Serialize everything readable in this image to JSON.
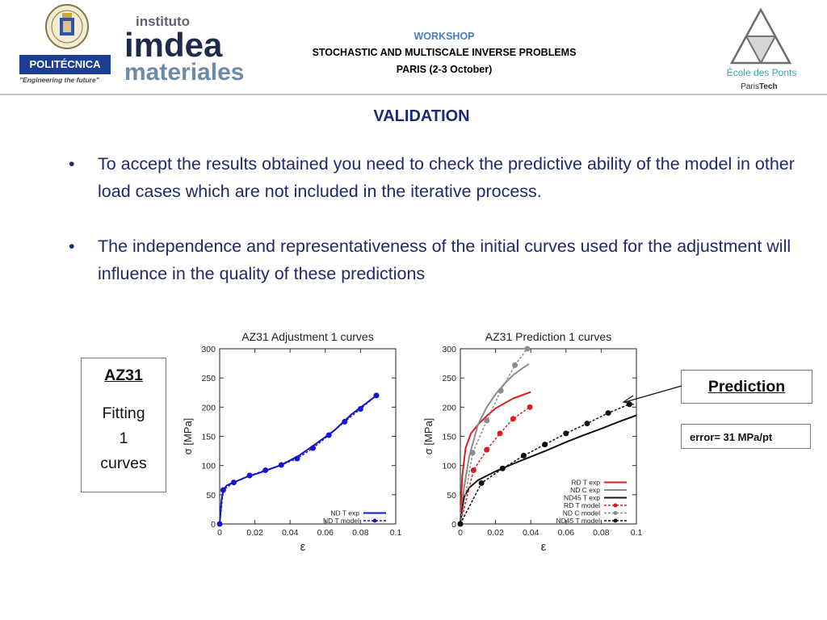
{
  "header": {
    "upm": {
      "banner": "POLITÉCNICA",
      "tagline": "\"Engineering the future\""
    },
    "imdea": {
      "line1": "instituto",
      "line2": "imdea",
      "line3": "materiales"
    },
    "workshop": {
      "label": "WORKSHOP",
      "name": "STOCHASTIC AND MULTISCALE INVERSE PROBLEMS",
      "location": "PARIS (2-3 October)"
    },
    "enpc": {
      "name": "École des Ponts",
      "sub1": "Paris",
      "sub2": "Tech"
    }
  },
  "slide": {
    "title": "VALIDATION",
    "bullets": [
      "To accept the results obtained you need to check the predictive ability of the model in other load cases which are not included in the iterative process.",
      "The independence and representativeness of the initial curves used for the adjustment will influence in the quality of these predictions"
    ],
    "bullet_symbol": "•"
  },
  "az_box": {
    "title": "AZ31",
    "line2": "Fitting",
    "line3": "1",
    "line4": "curves"
  },
  "prediction_box": {
    "label": "Prediction"
  },
  "error_box": {
    "label": "error= 31 MPa/pt"
  },
  "colors": {
    "blue": "#1515d0",
    "red": "#d62020",
    "grey": "#8c8c8c",
    "black": "#111111",
    "title_blue": "#1a2a70"
  },
  "chart_data": [
    {
      "type": "line",
      "title": "AZ31 Adjustment 1 curves",
      "xlabel": "ε",
      "ylabel": "σ [MPa]",
      "xlim": [
        0,
        0.1
      ],
      "ylim": [
        0,
        300
      ],
      "xticks": [
        "0",
        "0.02",
        "0.04",
        "0.06",
        "0.08",
        "0.1"
      ],
      "yticks": [
        "0",
        "50",
        "100",
        "150",
        "200",
        "250",
        "300"
      ],
      "legend_position": "bottom-right",
      "series": [
        {
          "name": "ND T exp",
          "style": "solid",
          "color": "#1515d0",
          "x": [
            0,
            0.001,
            0.002,
            0.004,
            0.008,
            0.015,
            0.025,
            0.035,
            0.045,
            0.055,
            0.065,
            0.075,
            0.089
          ],
          "y": [
            0,
            40,
            58,
            66,
            71,
            80,
            90,
            101,
            117,
            138,
            160,
            188,
            220
          ]
        },
        {
          "name": "ND T model",
          "style": "dashed-markers",
          "color": "#1515d0",
          "x": [
            0,
            0.002,
            0.008,
            0.017,
            0.026,
            0.035,
            0.044,
            0.053,
            0.062,
            0.071,
            0.08,
            0.089
          ],
          "y": [
            0,
            58,
            71,
            83,
            92,
            101,
            112,
            130,
            152,
            175,
            197,
            220
          ]
        }
      ]
    },
    {
      "type": "line",
      "title": "AZ31 Prediction 1 curves",
      "xlabel": "ε",
      "ylabel": "σ [MPa]",
      "xlim": [
        0,
        0.1
      ],
      "ylim": [
        0,
        300
      ],
      "xticks": [
        "0",
        "0.02",
        "0.04",
        "0.06",
        "0.08",
        "0.1"
      ],
      "yticks": [
        "0",
        "50",
        "100",
        "150",
        "200",
        "250",
        "300"
      ],
      "legend_position": "bottom-right",
      "series": [
        {
          "name": "RD T exp",
          "style": "solid",
          "color": "#d62020",
          "x": [
            0,
            0.001,
            0.003,
            0.006,
            0.01,
            0.015,
            0.02,
            0.03,
            0.04
          ],
          "y": [
            0,
            80,
            130,
            155,
            170,
            185,
            198,
            215,
            226
          ]
        },
        {
          "name": "ND C exp",
          "style": "solid",
          "color": "#8c8c8c",
          "x": [
            0,
            0.002,
            0.005,
            0.01,
            0.015,
            0.02,
            0.025,
            0.03,
            0.035,
            0.039
          ],
          "y": [
            0,
            60,
            115,
            170,
            200,
            222,
            240,
            255,
            266,
            274
          ]
        },
        {
          "name": "ND45 T exp",
          "style": "solid",
          "color": "#111111",
          "x": [
            0,
            0.002,
            0.005,
            0.01,
            0.02,
            0.03,
            0.04,
            0.05,
            0.06,
            0.07,
            0.08,
            0.09,
            0.1
          ],
          "y": [
            0,
            45,
            62,
            75,
            90,
            103,
            115,
            127,
            140,
            152,
            163,
            175,
            186
          ]
        },
        {
          "name": "RD T model",
          "style": "dashed-markers",
          "color": "#d62020",
          "x": [
            0,
            0.0075,
            0.015,
            0.0225,
            0.03,
            0.0395
          ],
          "y": [
            0,
            92,
            127,
            155,
            180,
            200
          ]
        },
        {
          "name": "ND C model",
          "style": "dashed-markers",
          "color": "#8c8c8c",
          "x": [
            0,
            0.007,
            0.015,
            0.023,
            0.031,
            0.038
          ],
          "y": [
            0,
            122,
            177,
            228,
            272,
            300
          ]
        },
        {
          "name": "ND45 T model",
          "style": "dashed-markers",
          "color": "#111111",
          "x": [
            0,
            0.012,
            0.024,
            0.036,
            0.048,
            0.06,
            0.072,
            0.084,
            0.096
          ],
          "y": [
            0,
            70,
            95,
            117,
            136,
            155,
            172,
            190,
            205
          ]
        }
      ]
    }
  ]
}
